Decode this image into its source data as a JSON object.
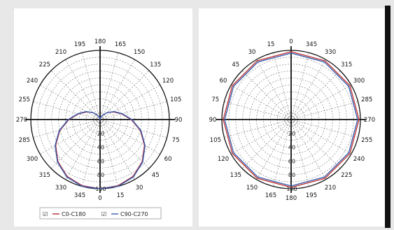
{
  "chart_data": [
    {
      "type": "polar",
      "angle_labels": [
        {
          "label": "180",
          "deg": 0
        },
        {
          "label": "165",
          "deg": 15
        },
        {
          "label": "150",
          "deg": 30
        },
        {
          "label": "135",
          "deg": 45
        },
        {
          "label": "120",
          "deg": 60
        },
        {
          "label": "105",
          "deg": 75
        },
        {
          "label": "90",
          "deg": 90
        },
        {
          "label": "75",
          "deg": 105
        },
        {
          "label": "60",
          "deg": 120
        },
        {
          "label": "45",
          "deg": 135
        },
        {
          "label": "30",
          "deg": 150
        },
        {
          "label": "15",
          "deg": 165
        },
        {
          "label": "0",
          "deg": 180
        },
        {
          "label": "345",
          "deg": 195
        },
        {
          "label": "330",
          "deg": 210
        },
        {
          "label": "315",
          "deg": 225
        },
        {
          "label": "300",
          "deg": 240
        },
        {
          "label": "285",
          "deg": 255
        },
        {
          "label": "270",
          "deg": 270
        },
        {
          "label": "255",
          "deg": 285
        },
        {
          "label": "240",
          "deg": 300
        },
        {
          "label": "225",
          "deg": 315
        },
        {
          "label": "210",
          "deg": 330
        },
        {
          "label": "195",
          "deg": 345
        }
      ],
      "radial_labels": [
        "20",
        "40",
        "60",
        "80",
        "100"
      ],
      "rmax": 100,
      "series": [
        {
          "name": "C0-C180",
          "color": "#b03040",
          "points": [
            {
              "deg": 0,
              "r": 0
            },
            {
              "deg": 15,
              "r": 3
            },
            {
              "deg": 30,
              "r": 7
            },
            {
              "deg": 45,
              "r": 14
            },
            {
              "deg": 60,
              "r": 22
            },
            {
              "deg": 75,
              "r": 32
            },
            {
              "deg": 90,
              "r": 45
            },
            {
              "deg": 105,
              "r": 60
            },
            {
              "deg": 120,
              "r": 74
            },
            {
              "deg": 135,
              "r": 86
            },
            {
              "deg": 150,
              "r": 95
            },
            {
              "deg": 165,
              "r": 99
            },
            {
              "deg": 180,
              "r": 100
            },
            {
              "deg": 195,
              "r": 99
            },
            {
              "deg": 210,
              "r": 95
            },
            {
              "deg": 225,
              "r": 86
            },
            {
              "deg": 240,
              "r": 74
            },
            {
              "deg": 255,
              "r": 60
            },
            {
              "deg": 270,
              "r": 45
            },
            {
              "deg": 285,
              "r": 32
            },
            {
              "deg": 300,
              "r": 22
            },
            {
              "deg": 315,
              "r": 14
            },
            {
              "deg": 330,
              "r": 7
            },
            {
              "deg": 345,
              "r": 3
            },
            {
              "deg": 360,
              "r": 0
            }
          ]
        },
        {
          "name": "C90-C270",
          "color": "#3a5fb0",
          "points": [
            {
              "deg": 0,
              "r": 0
            },
            {
              "deg": 15,
              "r": 3
            },
            {
              "deg": 30,
              "r": 7
            },
            {
              "deg": 45,
              "r": 14
            },
            {
              "deg": 60,
              "r": 23
            },
            {
              "deg": 75,
              "r": 33
            },
            {
              "deg": 90,
              "r": 46
            },
            {
              "deg": 105,
              "r": 61
            },
            {
              "deg": 120,
              "r": 75
            },
            {
              "deg": 135,
              "r": 87
            },
            {
              "deg": 150,
              "r": 96
            },
            {
              "deg": 165,
              "r": 100
            },
            {
              "deg": 180,
              "r": 100
            },
            {
              "deg": 195,
              "r": 100
            },
            {
              "deg": 210,
              "r": 96
            },
            {
              "deg": 225,
              "r": 87
            },
            {
              "deg": 240,
              "r": 75
            },
            {
              "deg": 255,
              "r": 61
            },
            {
              "deg": 270,
              "r": 46
            },
            {
              "deg": 285,
              "r": 33
            },
            {
              "deg": 300,
              "r": 23
            },
            {
              "deg": 315,
              "r": 14
            },
            {
              "deg": 330,
              "r": 7
            },
            {
              "deg": 345,
              "r": 3
            },
            {
              "deg": 360,
              "r": 0
            }
          ]
        }
      ],
      "legend": {
        "position": "bottom",
        "items": [
          {
            "checkbox": "☑",
            "label": "C0-C180",
            "color": "#b03040"
          },
          {
            "checkbox": "☑",
            "label": "C90-C270",
            "color": "#3a5fb0"
          }
        ]
      }
    },
    {
      "type": "polar",
      "angle_labels": [
        {
          "label": "0",
          "deg": 0
        },
        {
          "label": "345",
          "deg": 15
        },
        {
          "label": "330",
          "deg": 30
        },
        {
          "label": "315",
          "deg": 45
        },
        {
          "label": "300",
          "deg": 60
        },
        {
          "label": "285",
          "deg": 75
        },
        {
          "label": "270",
          "deg": 90
        },
        {
          "label": "255",
          "deg": 105
        },
        {
          "label": "240",
          "deg": 120
        },
        {
          "label": "225",
          "deg": 135
        },
        {
          "label": "210",
          "deg": 150
        },
        {
          "label": "195",
          "deg": 165
        },
        {
          "label": "180",
          "deg": 180
        },
        {
          "label": "165",
          "deg": 195
        },
        {
          "label": "150",
          "deg": 210
        },
        {
          "label": "135",
          "deg": 225
        },
        {
          "label": "120",
          "deg": 240
        },
        {
          "label": "105",
          "deg": 255
        },
        {
          "label": "90",
          "deg": 270
        },
        {
          "label": "75",
          "deg": 285
        },
        {
          "label": "60",
          "deg": 300
        },
        {
          "label": "45",
          "deg": 315
        },
        {
          "label": "30",
          "deg": 330
        },
        {
          "label": "15",
          "deg": 345
        }
      ],
      "radial_labels": [
        "20",
        "40",
        "60",
        "80",
        "100"
      ],
      "rmax": 100,
      "series": [
        {
          "name": "",
          "color": "#c03838",
          "points": [
            {
              "deg": 0,
              "r": 98
            },
            {
              "deg": 30,
              "r": 98
            },
            {
              "deg": 60,
              "r": 98
            },
            {
              "deg": 90,
              "r": 98
            },
            {
              "deg": 120,
              "r": 98
            },
            {
              "deg": 150,
              "r": 98
            },
            {
              "deg": 180,
              "r": 98
            },
            {
              "deg": 210,
              "r": 98
            },
            {
              "deg": 240,
              "r": 98
            },
            {
              "deg": 270,
              "r": 98
            },
            {
              "deg": 300,
              "r": 98
            },
            {
              "deg": 330,
              "r": 98
            },
            {
              "deg": 360,
              "r": 98
            }
          ]
        },
        {
          "name": "",
          "color": "#3a5fb0",
          "points": [
            {
              "deg": 0,
              "r": 96
            },
            {
              "deg": 30,
              "r": 96
            },
            {
              "deg": 60,
              "r": 96
            },
            {
              "deg": 90,
              "r": 96
            },
            {
              "deg": 120,
              "r": 96
            },
            {
              "deg": 150,
              "r": 96
            },
            {
              "deg": 180,
              "r": 96
            },
            {
              "deg": 210,
              "r": 96
            },
            {
              "deg": 240,
              "r": 96
            },
            {
              "deg": 270,
              "r": 96
            },
            {
              "deg": 300,
              "r": 96
            },
            {
              "deg": 330,
              "r": 96
            },
            {
              "deg": 360,
              "r": 96
            }
          ]
        }
      ]
    }
  ]
}
